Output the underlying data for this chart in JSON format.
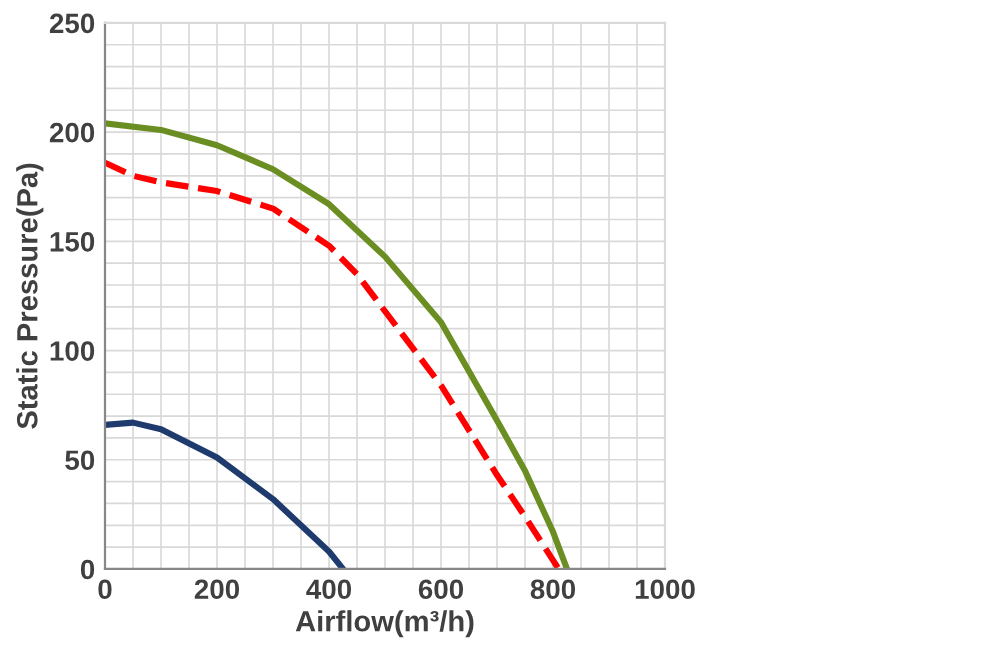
{
  "chart_data": {
    "type": "line",
    "xlabel": "Airflow(m³/h)",
    "ylabel": "Static Pressure(Pa)",
    "xlim": [
      0,
      1000
    ],
    "xticks": [
      0,
      200,
      400,
      600,
      800,
      1000
    ],
    "ylim": [
      0,
      250
    ],
    "yticks": [
      0,
      50,
      100,
      150,
      200,
      250
    ],
    "grid": true,
    "series": [
      {
        "color": "#6b8e23",
        "line_style": "solid",
        "x": [
          0,
          100,
          200,
          300,
          400,
          500,
          600,
          700,
          750,
          800,
          825
        ],
        "values": [
          204,
          201,
          194,
          183,
          167,
          143,
          113,
          68,
          45,
          17,
          0
        ]
      },
      {
        "color": "#ff0000",
        "line_style": "dashed",
        "x": [
          0,
          50,
          100,
          200,
          300,
          400,
          450,
          500,
          600,
          700,
          750,
          810
        ],
        "values": [
          186,
          180,
          177,
          173,
          165,
          148,
          135,
          118,
          84,
          43,
          24,
          0
        ]
      },
      {
        "color": "#1f3b6e",
        "line_style": "solid",
        "x": [
          0,
          50,
          100,
          200,
          300,
          400,
          425
        ],
        "values": [
          66,
          67,
          64,
          51,
          32,
          8,
          0
        ]
      }
    ]
  }
}
